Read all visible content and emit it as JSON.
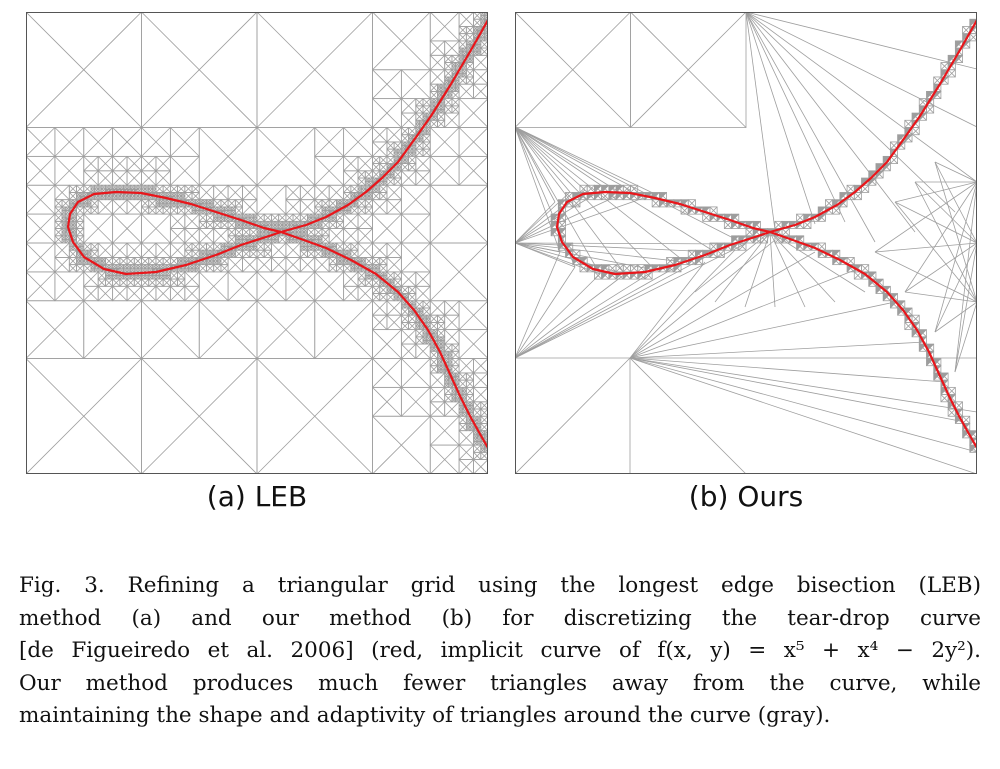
{
  "figure": {
    "panel_a_label": "(a) LEB",
    "panel_b_label": "(b) Ours",
    "caption_lines": [
      "Fig. 3.  Refining a triangular grid using the longest edge bisection (LEB)",
      "method (a) and our method (b) for discretizing the tear-drop curve",
      "[de Figueiredo et al. 2006] (red, implicit curve of f(x, y) = x⁵ + x⁴ − 2y²).",
      "Our method produces much fewer triangles away from the curve, while",
      "maintaining the shape and adaptivity of triangles around the curve (gray)."
    ]
  },
  "colors": {
    "grid": "#9e9e9e",
    "curve": "#e8161b",
    "cells": "#8c8c8c",
    "frame": "#555555"
  }
}
